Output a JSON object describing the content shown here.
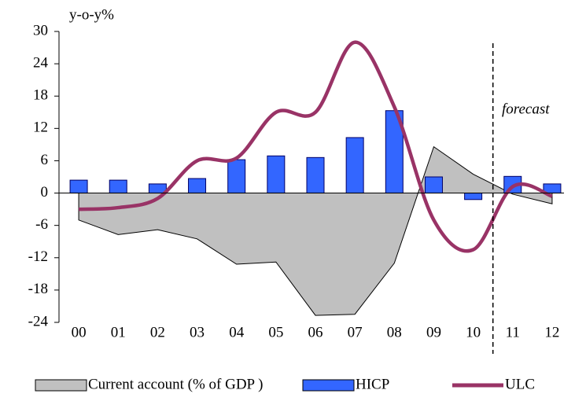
{
  "chart_data": {
    "type": "combo",
    "y_label": "y-o-y%",
    "annotation": "forecast",
    "categories": [
      "00",
      "01",
      "02",
      "03",
      "04",
      "05",
      "06",
      "07",
      "08",
      "09",
      "10",
      "11",
      "12"
    ],
    "series": [
      {
        "name": "Current account (% of GDP )",
        "type": "area",
        "color": "#c0c0c0",
        "values": [
          -5.0,
          -7.7,
          -6.8,
          -8.5,
          -13.2,
          -12.8,
          -22.7,
          -22.5,
          -13.0,
          8.6,
          3.5,
          -0.2,
          -2.0
        ]
      },
      {
        "name": "HICP",
        "type": "bar",
        "color": "#3366ff",
        "values": [
          2.4,
          2.4,
          1.7,
          2.7,
          6.2,
          6.9,
          6.6,
          10.3,
          15.3,
          3.0,
          -1.2,
          3.1,
          1.7
        ]
      },
      {
        "name": "ULC",
        "type": "line",
        "color": "#993366",
        "values": [
          -3.0,
          -2.7,
          -1.0,
          6.0,
          6.5,
          15.0,
          15.0,
          28.0,
          16.0,
          -5.0,
          -10.5,
          1.2,
          -0.6
        ]
      }
    ],
    "ylim": [
      -24,
      30
    ],
    "yticks": [
      -24,
      -18,
      -12,
      -6,
      0,
      6,
      12,
      18,
      24,
      30
    ]
  }
}
